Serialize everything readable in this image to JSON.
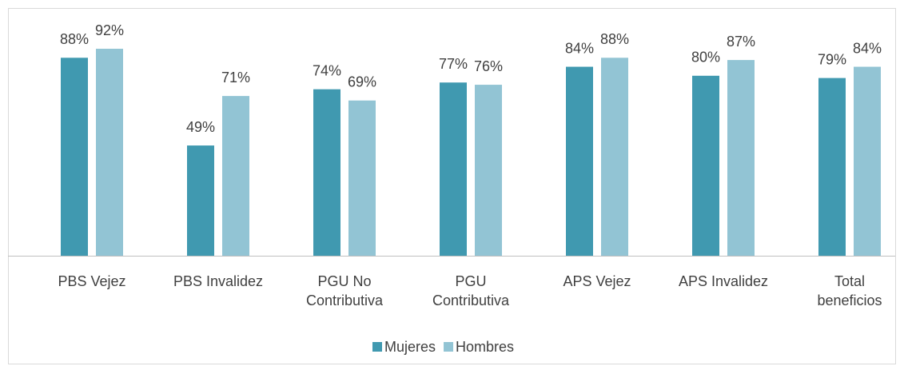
{
  "chart_data": {
    "type": "bar",
    "categories": [
      "PBS Vejez",
      "PBS Invalidez",
      "PGU No Contributiva",
      "PGU Contributiva",
      "APS Vejez",
      "APS Invalidez",
      "Total beneficios"
    ],
    "series": [
      {
        "name": "Mujeres",
        "color": "#4099b0",
        "values": [
          88,
          49,
          74,
          77,
          84,
          80,
          79
        ],
        "value_labels": [
          "88%",
          "49%",
          "74%",
          "77%",
          "84%",
          "80%",
          "79%"
        ]
      },
      {
        "name": "Hombres",
        "color": "#92c4d4",
        "values": [
          92,
          71,
          69,
          76,
          88,
          87,
          84
        ],
        "value_labels": [
          "92%",
          "71%",
          "69%",
          "76%",
          "88%",
          "87%",
          "84%"
        ]
      }
    ],
    "ylim": [
      0,
      100
    ],
    "legend": "bottom"
  }
}
